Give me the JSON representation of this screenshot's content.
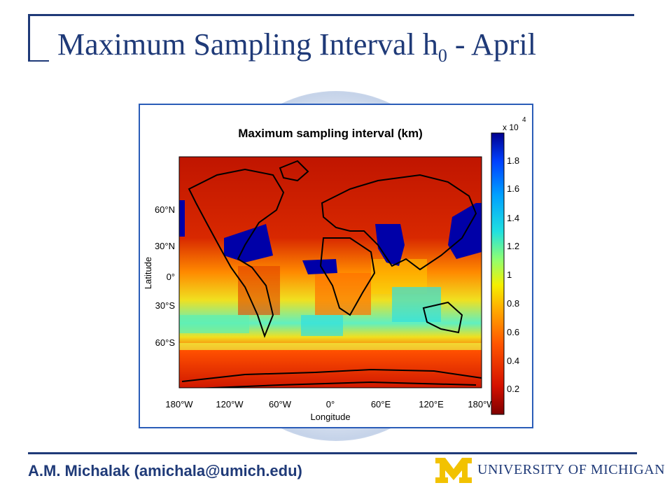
{
  "slide": {
    "title_main": "Maximum Sampling Interval h",
    "title_sub": "0",
    "title_tail": " - April",
    "author": "A.M. Michalak (amichala@umich.edu)",
    "logo_text": "UNIVERSITY OF MICHIGAN",
    "logo_letter": "M"
  },
  "figure": {
    "title": "Maximum sampling interval (km)",
    "ylabel": "Latitude",
    "xlabel": "Longitude",
    "x_ticks": [
      "180°W",
      "120°W",
      "60°W",
      "0°",
      "60°E",
      "120°E",
      "180°W"
    ],
    "y_ticks": [
      "60°N",
      "30°N",
      "0°",
      "30°S",
      "60°S"
    ],
    "colorbar": {
      "multiplier": "x 10",
      "exponent": "4",
      "ticks": [
        "1.8",
        "1.6",
        "1.4",
        "1.2",
        "1",
        "0.8",
        "0.6",
        "0.4",
        "0.2"
      ],
      "colors": [
        "#7f0000",
        "#d41000",
        "#ff5500",
        "#ffb000",
        "#f5f000",
        "#90ff70",
        "#20e0e0",
        "#00a0ff",
        "#0040ff",
        "#00008f"
      ]
    }
  }
}
